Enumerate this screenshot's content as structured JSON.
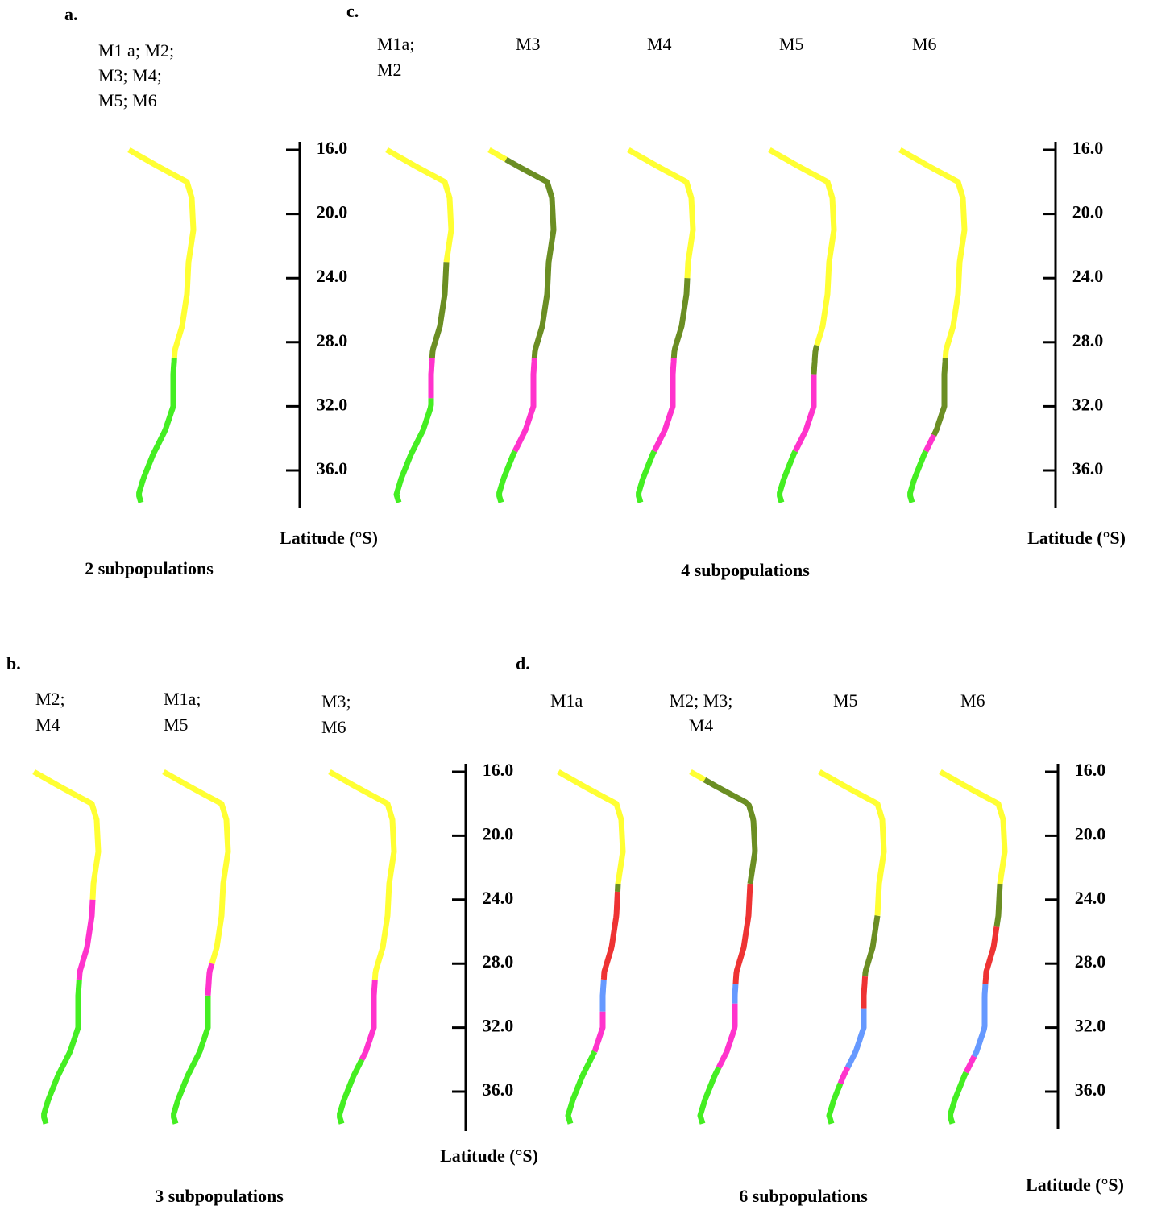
{
  "panels": [
    {
      "label": "a.",
      "footer": "2 subpopulations",
      "axis_label": "Latitude (°S)",
      "axis_ticks": [
        {
          "value": 16,
          "label": "16.0"
        },
        {
          "value": 20,
          "label": "20.0"
        },
        {
          "value": 24,
          "label": "24.0"
        },
        {
          "value": 28,
          "label": "28.0"
        },
        {
          "value": 32,
          "label": "32.0"
        },
        {
          "value": 36,
          "label": "36.0"
        }
      ],
      "maps": [
        {
          "models": [
            "M1 a; M2;",
            "M3; M4;",
            "M5; M6"
          ],
          "segments": [
            {
              "from": 16,
              "to": 29,
              "color": "#ffff33"
            },
            {
              "from": 29,
              "to": 38,
              "color": "#44ee22"
            }
          ]
        }
      ]
    },
    {
      "label": "c.",
      "footer": "4 subpopulations",
      "axis_label": "Latitude (°S)",
      "axis_ticks": [
        {
          "value": 16,
          "label": "16.0"
        },
        {
          "value": 20,
          "label": "20.0"
        },
        {
          "value": 24,
          "label": "24.0"
        },
        {
          "value": 28,
          "label": "28.0"
        },
        {
          "value": 32,
          "label": "32.0"
        },
        {
          "value": 36,
          "label": "36.0"
        }
      ],
      "maps": [
        {
          "models": [
            "M1a;",
            "M2"
          ],
          "segments": [
            {
              "from": 16,
              "to": 23,
              "color": "#ffff33"
            },
            {
              "from": 23,
              "to": 29,
              "color": "#6b8e23"
            },
            {
              "from": 29,
              "to": 31.5,
              "color": "#ff33cc"
            },
            {
              "from": 31.5,
              "to": 38,
              "color": "#44ee22"
            }
          ]
        },
        {
          "models": [
            "M3"
          ],
          "segments": [
            {
              "from": 16,
              "to": 16.6,
              "color": "#ffff33"
            },
            {
              "from": 16.6,
              "to": 29,
              "color": "#6b8e23"
            },
            {
              "from": 29,
              "to": 34.8,
              "color": "#ff33cc"
            },
            {
              "from": 34.8,
              "to": 38,
              "color": "#44ee22"
            }
          ]
        },
        {
          "models": [
            "M4"
          ],
          "segments": [
            {
              "from": 16,
              "to": 24,
              "color": "#ffff33"
            },
            {
              "from": 24,
              "to": 29,
              "color": "#6b8e23"
            },
            {
              "from": 29,
              "to": 34.8,
              "color": "#ff33cc"
            },
            {
              "from": 34.8,
              "to": 38,
              "color": "#44ee22"
            }
          ]
        },
        {
          "models": [
            "M5"
          ],
          "segments": [
            {
              "from": 16,
              "to": 28.2,
              "color": "#ffff33"
            },
            {
              "from": 28.2,
              "to": 30,
              "color": "#6b8e23"
            },
            {
              "from": 30,
              "to": 34.8,
              "color": "#ff33cc"
            },
            {
              "from": 34.8,
              "to": 38,
              "color": "#44ee22"
            }
          ]
        },
        {
          "models": [
            "M6"
          ],
          "segments": [
            {
              "from": 16,
              "to": 29,
              "color": "#ffff33"
            },
            {
              "from": 29,
              "to": 33.8,
              "color": "#6b8e23"
            },
            {
              "from": 33.8,
              "to": 34.8,
              "color": "#ff33cc"
            },
            {
              "from": 34.8,
              "to": 38,
              "color": "#44ee22"
            }
          ]
        }
      ]
    },
    {
      "label": "b.",
      "footer": "3 subpopulations",
      "axis_label": "Latitude (°S)",
      "axis_ticks": [
        {
          "value": 16,
          "label": "16.0"
        },
        {
          "value": 20,
          "label": "20.0"
        },
        {
          "value": 24,
          "label": "24.0"
        },
        {
          "value": 28,
          "label": "28.0"
        },
        {
          "value": 32,
          "label": "32.0"
        },
        {
          "value": 36,
          "label": "36.0"
        }
      ],
      "maps": [
        {
          "models": [
            "M2;",
            "M4"
          ],
          "segments": [
            {
              "from": 16,
              "to": 24,
              "color": "#ffff33"
            },
            {
              "from": 24,
              "to": 29,
              "color": "#ff33cc"
            },
            {
              "from": 29,
              "to": 38,
              "color": "#44ee22"
            }
          ]
        },
        {
          "models": [
            "M1a;",
            "M5"
          ],
          "segments": [
            {
              "from": 16,
              "to": 28,
              "color": "#ffff33"
            },
            {
              "from": 28,
              "to": 30,
              "color": "#ff33cc"
            },
            {
              "from": 30,
              "to": 38,
              "color": "#44ee22"
            }
          ]
        },
        {
          "models": [
            "M3;",
            "M6"
          ],
          "segments": [
            {
              "from": 16,
              "to": 29,
              "color": "#ffff33"
            },
            {
              "from": 29,
              "to": 34,
              "color": "#ff33cc"
            },
            {
              "from": 34,
              "to": 38,
              "color": "#44ee22"
            }
          ]
        }
      ]
    },
    {
      "label": "d.",
      "footer": "6 subpopulations",
      "axis_label": "Latitude (°S)",
      "axis_ticks": [
        {
          "value": 16,
          "label": "16.0"
        },
        {
          "value": 20,
          "label": "20.0"
        },
        {
          "value": 24,
          "label": "24.0"
        },
        {
          "value": 28,
          "label": "28.0"
        },
        {
          "value": 32,
          "label": "32.0"
        },
        {
          "value": 36,
          "label": "36.0"
        }
      ],
      "maps": [
        {
          "models": [
            "M1a"
          ],
          "segments": [
            {
              "from": 16,
              "to": 23,
              "color": "#ffff33"
            },
            {
              "from": 23,
              "to": 23.5,
              "color": "#6b8e23"
            },
            {
              "from": 23.5,
              "to": 29,
              "color": "#ee3333"
            },
            {
              "from": 29,
              "to": 31,
              "color": "#6699ff"
            },
            {
              "from": 31,
              "to": 33.5,
              "color": "#ff33cc"
            },
            {
              "from": 33.5,
              "to": 38,
              "color": "#44ee22"
            }
          ]
        },
        {
          "models": [
            "M2; M3;",
            "M4"
          ],
          "segments": [
            {
              "from": 16,
              "to": 16.5,
              "color": "#ffff33"
            },
            {
              "from": 16.5,
              "to": 23,
              "color": "#6b8e23"
            },
            {
              "from": 23,
              "to": 29.3,
              "color": "#ee3333"
            },
            {
              "from": 29.3,
              "to": 30.5,
              "color": "#6699ff"
            },
            {
              "from": 30.5,
              "to": 34.5,
              "color": "#ff33cc"
            },
            {
              "from": 34.5,
              "to": 38,
              "color": "#44ee22"
            }
          ]
        },
        {
          "models": [
            "M5"
          ],
          "segments": [
            {
              "from": 16,
              "to": 25,
              "color": "#ffff33"
            },
            {
              "from": 25,
              "to": 28.8,
              "color": "#6b8e23"
            },
            {
              "from": 28.8,
              "to": 30.8,
              "color": "#ee3333"
            },
            {
              "from": 30.8,
              "to": 34.5,
              "color": "#6699ff"
            },
            {
              "from": 34.5,
              "to": 35.5,
              "color": "#ff33cc"
            },
            {
              "from": 35.5,
              "to": 38,
              "color": "#44ee22"
            }
          ]
        },
        {
          "models": [
            "M6"
          ],
          "segments": [
            {
              "from": 16,
              "to": 23,
              "color": "#ffff33"
            },
            {
              "from": 23,
              "to": 25.7,
              "color": "#6b8e23"
            },
            {
              "from": 25.7,
              "to": 29.3,
              "color": "#ee3333"
            },
            {
              "from": 29.3,
              "to": 33.8,
              "color": "#6699ff"
            },
            {
              "from": 33.8,
              "to": 34.8,
              "color": "#ff33cc"
            },
            {
              "from": 34.8,
              "to": 38,
              "color": "#44ee22"
            }
          ]
        }
      ]
    }
  ]
}
